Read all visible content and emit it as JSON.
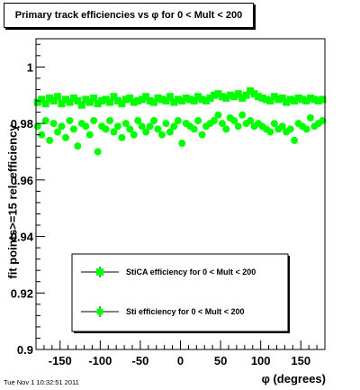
{
  "chart_data": {
    "type": "scatter",
    "title": "Primary track efficiencies vs φ for 0 < Mult < 200",
    "xlabel": "φ (degrees)",
    "ylabel": "fit points>=15 rel. efficiency",
    "xlim": [
      -180,
      180
    ],
    "ylim": [
      0.9,
      1.01
    ],
    "x_ticks": [
      -150,
      -100,
      -50,
      0,
      50,
      100,
      150
    ],
    "y_ticks": [
      0.9,
      0.92,
      0.94,
      0.96,
      0.98,
      1
    ],
    "y_tick_labels": [
      "0.9",
      "0.92",
      "0.94",
      "0.96",
      "0.98",
      "1"
    ],
    "x_tick_labels": [
      "-150",
      "-100",
      "-50",
      "0",
      "50",
      "100",
      "150"
    ],
    "legend_placement": "bottom-right",
    "grid": false,
    "series": [
      {
        "name": "StiCA efficiency for 0 < Mult < 200",
        "marker": "square",
        "color": "#00ff00",
        "x": [
          -178,
          -173,
          -168,
          -163,
          -158,
          -153,
          -148,
          -143,
          -138,
          -133,
          -128,
          -123,
          -118,
          -113,
          -108,
          -103,
          -98,
          -93,
          -88,
          -83,
          -78,
          -73,
          -68,
          -63,
          -58,
          -53,
          -48,
          -43,
          -38,
          -33,
          -28,
          -23,
          -18,
          -13,
          -8,
          -3,
          2,
          7,
          12,
          17,
          22,
          27,
          32,
          37,
          42,
          47,
          52,
          57,
          62,
          67,
          72,
          77,
          82,
          87,
          92,
          97,
          102,
          107,
          112,
          117,
          122,
          127,
          132,
          137,
          142,
          147,
          152,
          157,
          162,
          167,
          172,
          177
        ],
        "y": [
          0.9875,
          0.9885,
          0.987,
          0.989,
          0.988,
          0.9895,
          0.987,
          0.9885,
          0.9875,
          0.989,
          0.988,
          0.9865,
          0.9885,
          0.9875,
          0.989,
          0.987,
          0.988,
          0.9885,
          0.9875,
          0.9895,
          0.988,
          0.987,
          0.9885,
          0.989,
          0.9875,
          0.988,
          0.9885,
          0.9895,
          0.988,
          0.9875,
          0.989,
          0.9885,
          0.988,
          0.9895,
          0.9875,
          0.9885,
          0.988,
          0.989,
          0.9885,
          0.988,
          0.9895,
          0.9885,
          0.988,
          0.989,
          0.99,
          0.9905,
          0.9895,
          0.989,
          0.99,
          0.9895,
          0.9905,
          0.989,
          0.99,
          0.9915,
          0.9905,
          0.9895,
          0.989,
          0.9885,
          0.988,
          0.9895,
          0.9885,
          0.989,
          0.9875,
          0.9885,
          0.988,
          0.989,
          0.9885,
          0.988,
          0.989,
          0.9885,
          0.988,
          0.9885
        ]
      },
      {
        "name": "Sti efficiency for 0 < Mult < 200",
        "marker": "circle",
        "color": "#00ff00",
        "x": [
          -178,
          -173,
          -168,
          -163,
          -158,
          -153,
          -148,
          -143,
          -138,
          -133,
          -128,
          -123,
          -118,
          -113,
          -108,
          -103,
          -98,
          -93,
          -88,
          -83,
          -78,
          -73,
          -68,
          -63,
          -58,
          -53,
          -48,
          -43,
          -38,
          -33,
          -28,
          -23,
          -18,
          -13,
          -8,
          -3,
          2,
          7,
          12,
          17,
          22,
          27,
          32,
          37,
          42,
          47,
          52,
          57,
          62,
          67,
          72,
          77,
          82,
          87,
          92,
          97,
          102,
          107,
          112,
          117,
          122,
          127,
          132,
          137,
          142,
          147,
          152,
          157,
          162,
          167,
          172,
          177
        ],
        "y": [
          0.979,
          0.976,
          0.981,
          0.974,
          0.98,
          0.977,
          0.979,
          0.975,
          0.981,
          0.978,
          0.972,
          0.98,
          0.979,
          0.976,
          0.981,
          0.97,
          0.979,
          0.978,
          0.981,
          0.977,
          0.979,
          0.975,
          0.98,
          0.978,
          0.976,
          0.981,
          0.979,
          0.977,
          0.979,
          0.981,
          0.978,
          0.976,
          0.98,
          0.977,
          0.979,
          0.981,
          0.973,
          0.98,
          0.979,
          0.978,
          0.981,
          0.976,
          0.979,
          0.98,
          0.981,
          0.983,
          0.98,
          0.978,
          0.982,
          0.981,
          0.979,
          0.983,
          0.98,
          0.981,
          0.979,
          0.98,
          0.979,
          0.978,
          0.977,
          0.98,
          0.978,
          0.979,
          0.977,
          0.978,
          0.974,
          0.98,
          0.979,
          0.978,
          0.982,
          0.979,
          0.98,
          0.981
        ]
      }
    ]
  },
  "footer": {
    "timestamp": "Tue Nov  1 10:32:51 2011"
  }
}
